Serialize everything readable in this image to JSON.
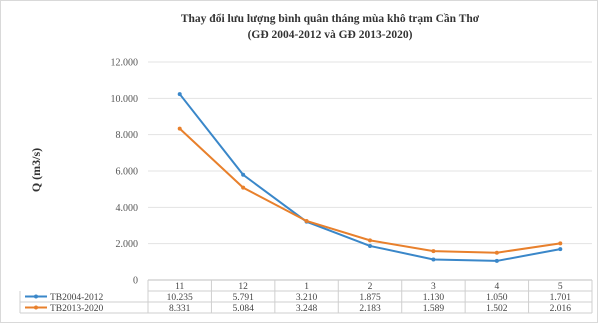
{
  "chart_data": {
    "type": "line",
    "title": "Thay đổi lưu lượng bình quân tháng mùa khô trạm Cần Thơ",
    "subtitle": "(GĐ 2004-2012 và GĐ 2013-2020)",
    "ylabel": "Q (m3/s)",
    "xlabel": "",
    "ylim": [
      0,
      12000
    ],
    "yticks": [
      "12.000",
      "10.000",
      "8.000",
      "6.000",
      "4.000",
      "2.000",
      "0"
    ],
    "categories": [
      "11",
      "12",
      "1",
      "2",
      "3",
      "4",
      "5"
    ],
    "series": [
      {
        "name": "TB2004-2012",
        "color": "#3a87c9",
        "values": [
          10235,
          5791,
          3210,
          1875,
          1130,
          1050,
          1701
        ],
        "labels": [
          "10.235",
          "5.791",
          "3.210",
          "1.875",
          "1.130",
          "1.050",
          "1.701"
        ]
      },
      {
        "name": "TB2013-2020",
        "color": "#e8802c",
        "values": [
          8331,
          5084,
          3248,
          2183,
          1589,
          1502,
          2016
        ],
        "labels": [
          "8.331",
          "5.084",
          "3.248",
          "2.183",
          "1.589",
          "1.502",
          "2.016"
        ]
      }
    ],
    "grid": true,
    "legend": "data-table"
  }
}
